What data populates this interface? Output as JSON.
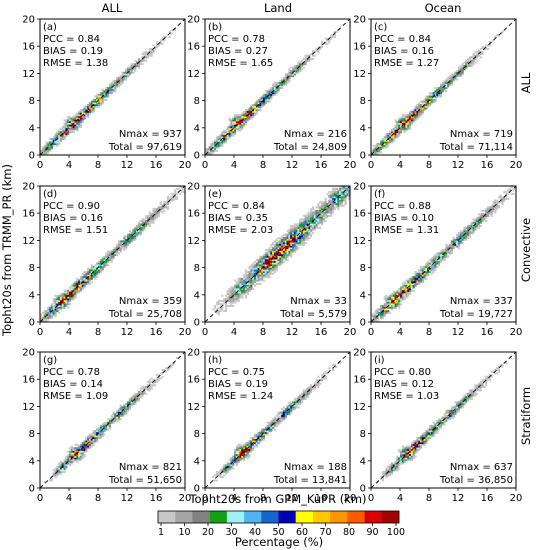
{
  "figure": {
    "column_titles": [
      "ALL",
      "Land",
      "Ocean"
    ],
    "row_titles": [
      "ALL",
      "Convective",
      "Stratiform"
    ],
    "xlabel": "Topht20s from GPM_KuPR (km)",
    "ylabel": "Topht20s from TRMM_PR (km)",
    "colorbar": {
      "label": "Percentage (%)",
      "ticks": [
        "1",
        "10",
        "20",
        "30",
        "40",
        "50",
        "60",
        "70",
        "80",
        "90",
        "100"
      ],
      "colors": [
        "#c8c8c8",
        "#a6a6a6",
        "#828282",
        "#14a014",
        "#a0f0fa",
        "#50b4f0",
        "#1464d2",
        "#0000b4",
        "#ffff00",
        "#ffc800",
        "#ff9600",
        "#ff5a00",
        "#dc0000",
        "#a00000"
      ]
    }
  },
  "chart_data": [
    {
      "type": "heatmap",
      "panel": "(a)",
      "pcc": "PCC = 0.84",
      "bias": "BIAS = 0.19",
      "rmse": "RMSE = 1.38",
      "nmax": "Nmax = 937",
      "total": "Total = 97,619",
      "xlim": [
        0,
        20
      ],
      "ylim": [
        0,
        20
      ],
      "ticks": [
        "0",
        "4",
        "8",
        "12",
        "16",
        "20"
      ],
      "peak": [
        4.5,
        4.6
      ],
      "spread": "compact"
    },
    {
      "type": "heatmap",
      "panel": "(b)",
      "pcc": "PCC = 0.78",
      "bias": "BIAS = 0.27",
      "rmse": "RMSE = 1.65",
      "nmax": "Nmax = 216",
      "total": "Total = 24,809",
      "xlim": [
        0,
        20
      ],
      "ylim": [
        0,
        20
      ],
      "ticks": [
        "0",
        "4",
        "8",
        "12",
        "16",
        "20"
      ],
      "peak": [
        4.5,
        4.8
      ],
      "spread": "compact"
    },
    {
      "type": "heatmap",
      "panel": "(c)",
      "pcc": "PCC = 0.84",
      "bias": "BIAS = 0.16",
      "rmse": "RMSE = 1.27",
      "nmax": "Nmax = 719",
      "total": "Total = 71,114",
      "xlim": [
        0,
        20
      ],
      "ylim": [
        0,
        20
      ],
      "ticks": [
        "0",
        "4",
        "8",
        "12",
        "16",
        "20"
      ],
      "peak": [
        4.5,
        4.6
      ],
      "spread": "compact"
    },
    {
      "type": "heatmap",
      "panel": "(d)",
      "pcc": "PCC = 0.90",
      "bias": "BIAS = 0.16",
      "rmse": "RMSE = 1.51",
      "nmax": "Nmax = 359",
      "total": "Total = 25,708",
      "xlim": [
        0,
        20
      ],
      "ylim": [
        0,
        20
      ],
      "ticks": [
        "0",
        "4",
        "8",
        "12",
        "16",
        "20"
      ],
      "peak": [
        3.0,
        3.0
      ],
      "spread": "long"
    },
    {
      "type": "heatmap",
      "panel": "(e)",
      "pcc": "PCC = 0.84",
      "bias": "BIAS = 0.35",
      "rmse": "RMSE = 2.03",
      "nmax": "Nmax = 33",
      "total": "Total = 5,579",
      "xlim": [
        0,
        20
      ],
      "ylim": [
        0,
        20
      ],
      "ticks": [
        "0",
        "4",
        "8",
        "12",
        "16",
        "20"
      ],
      "peak": [
        9.0,
        9.3
      ],
      "spread": "wide"
    },
    {
      "type": "heatmap",
      "panel": "(f)",
      "pcc": "PCC = 0.88",
      "bias": "BIAS = 0.10",
      "rmse": "RMSE = 1.31",
      "nmax": "Nmax = 337",
      "total": "Total = 19,727",
      "xlim": [
        0,
        20
      ],
      "ylim": [
        0,
        20
      ],
      "ticks": [
        "0",
        "4",
        "8",
        "12",
        "16",
        "20"
      ],
      "peak": [
        3.0,
        3.0
      ],
      "spread": "long"
    },
    {
      "type": "heatmap",
      "panel": "(g)",
      "pcc": "PCC = 0.78",
      "bias": "BIAS = 0.14",
      "rmse": "RMSE = 1.09",
      "nmax": "Nmax = 821",
      "total": "Total = 51,650",
      "xlim": [
        0,
        20
      ],
      "ylim": [
        0,
        20
      ],
      "ticks": [
        "0",
        "4",
        "8",
        "12",
        "16",
        "20"
      ],
      "peak": [
        5.0,
        5.1
      ],
      "spread": "tight"
    },
    {
      "type": "heatmap",
      "panel": "(h)",
      "pcc": "PCC = 0.75",
      "bias": "BIAS = 0.19",
      "rmse": "RMSE = 1.24",
      "nmax": "Nmax = 188",
      "total": "Total = 13,841",
      "xlim": [
        0,
        20
      ],
      "ylim": [
        0,
        20
      ],
      "ticks": [
        "0",
        "4",
        "8",
        "12",
        "16",
        "20"
      ],
      "peak": [
        5.0,
        5.2
      ],
      "spread": "tight"
    },
    {
      "type": "heatmap",
      "panel": "(i)",
      "pcc": "PCC = 0.80",
      "bias": "BIAS = 0.12",
      "rmse": "RMSE = 1.03",
      "nmax": "Nmax = 637",
      "total": "Total = 36,850",
      "xlim": [
        0,
        20
      ],
      "ylim": [
        0,
        20
      ],
      "ticks": [
        "0",
        "4",
        "8",
        "12",
        "16",
        "20"
      ],
      "peak": [
        5.0,
        5.1
      ],
      "spread": "tight"
    }
  ]
}
